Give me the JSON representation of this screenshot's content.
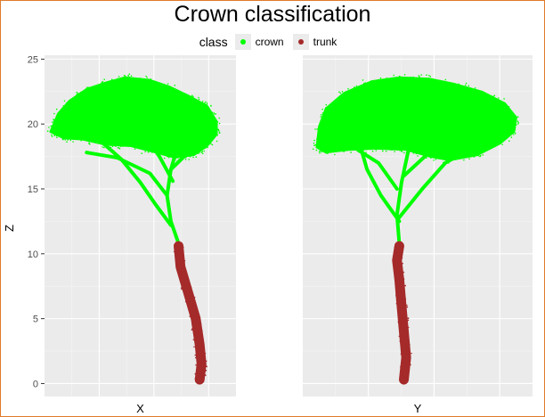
{
  "chart_data": {
    "type": "scatter",
    "title": "Crown classification",
    "legend": {
      "title": "class",
      "placement": "top",
      "entries": [
        {
          "name": "crown",
          "color": "#00ff00"
        },
        {
          "name": "trunk",
          "color": "#a52a2a"
        }
      ]
    },
    "ylabel": "Z",
    "ylim": [
      -1,
      25.3
    ],
    "yticks": [
      0,
      5,
      10,
      15,
      20,
      25
    ],
    "grid": true,
    "panels": [
      {
        "xlabel": "X",
        "trunk_path": [
          [
            0.81,
            0.3
          ],
          [
            0.82,
            1.5
          ],
          [
            0.81,
            3
          ],
          [
            0.79,
            5
          ],
          [
            0.75,
            7
          ],
          [
            0.71,
            9
          ],
          [
            0.7,
            10.6
          ]
        ],
        "crown_outline": [
          [
            0.03,
            19.4
          ],
          [
            0.07,
            20.8
          ],
          [
            0.13,
            21.8
          ],
          [
            0.22,
            22.7
          ],
          [
            0.32,
            23.2
          ],
          [
            0.42,
            23.6
          ],
          [
            0.55,
            23.4
          ],
          [
            0.65,
            22.9
          ],
          [
            0.75,
            22.2
          ],
          [
            0.85,
            21.4
          ],
          [
            0.9,
            20.2
          ],
          [
            0.9,
            19.2
          ],
          [
            0.85,
            18.3
          ],
          [
            0.78,
            17.6
          ],
          [
            0.68,
            17.4
          ],
          [
            0.58,
            17.8
          ],
          [
            0.45,
            18.3
          ],
          [
            0.32,
            18.4
          ],
          [
            0.2,
            18.8
          ],
          [
            0.1,
            18.9
          ]
        ],
        "branches": [
          [
            [
              0.7,
              10.8
            ],
            [
              0.66,
              12.5
            ],
            [
              0.64,
              14.5
            ],
            [
              0.66,
              16.5
            ],
            [
              0.7,
              18.5
            ]
          ],
          [
            [
              0.66,
              12.2
            ],
            [
              0.58,
              13.8
            ],
            [
              0.5,
              15.5
            ],
            [
              0.4,
              17.3
            ],
            [
              0.3,
              18.6
            ]
          ],
          [
            [
              0.64,
              14.5
            ],
            [
              0.55,
              16.2
            ],
            [
              0.38,
              17.4
            ],
            [
              0.22,
              17.8
            ]
          ],
          [
            [
              0.66,
              16.5
            ],
            [
              0.75,
              17.8
            ],
            [
              0.82,
              18.6
            ]
          ],
          [
            [
              0.67,
              15.6
            ],
            [
              0.6,
              17.5
            ],
            [
              0.52,
              19.2
            ]
          ]
        ]
      },
      {
        "xlabel": "Y",
        "trunk_path": [
          [
            0.44,
            0.3
          ],
          [
            0.45,
            2
          ],
          [
            0.44,
            4
          ],
          [
            0.43,
            6
          ],
          [
            0.42,
            8
          ],
          [
            0.41,
            9.5
          ],
          [
            0.42,
            10.6
          ]
        ],
        "crown_outline": [
          [
            0.06,
            18.2
          ],
          [
            0.07,
            19.8
          ],
          [
            0.1,
            21.2
          ],
          [
            0.18,
            22.4
          ],
          [
            0.3,
            23.3
          ],
          [
            0.42,
            23.6
          ],
          [
            0.55,
            23.5
          ],
          [
            0.66,
            23.1
          ],
          [
            0.78,
            22.5
          ],
          [
            0.88,
            21.6
          ],
          [
            0.93,
            20.5
          ],
          [
            0.92,
            19.4
          ],
          [
            0.86,
            18.5
          ],
          [
            0.76,
            17.6
          ],
          [
            0.64,
            17.2
          ],
          [
            0.55,
            17.5
          ],
          [
            0.45,
            18
          ],
          [
            0.32,
            18.1
          ],
          [
            0.2,
            18
          ],
          [
            0.1,
            17.8
          ]
        ],
        "branches": [
          [
            [
              0.42,
              10.8
            ],
            [
              0.41,
              13
            ],
            [
              0.43,
              15.5
            ],
            [
              0.46,
              18
            ]
          ],
          [
            [
              0.42,
              12.5
            ],
            [
              0.34,
              14.5
            ],
            [
              0.28,
              16.5
            ],
            [
              0.25,
              18.3
            ]
          ],
          [
            [
              0.42,
              12.8
            ],
            [
              0.52,
              15
            ],
            [
              0.62,
              17
            ],
            [
              0.72,
              18
            ]
          ],
          [
            [
              0.41,
              15
            ],
            [
              0.33,
              17
            ],
            [
              0.24,
              18
            ]
          ],
          [
            [
              0.44,
              16
            ],
            [
              0.55,
              17.8
            ],
            [
              0.62,
              19
            ]
          ]
        ]
      }
    ]
  }
}
